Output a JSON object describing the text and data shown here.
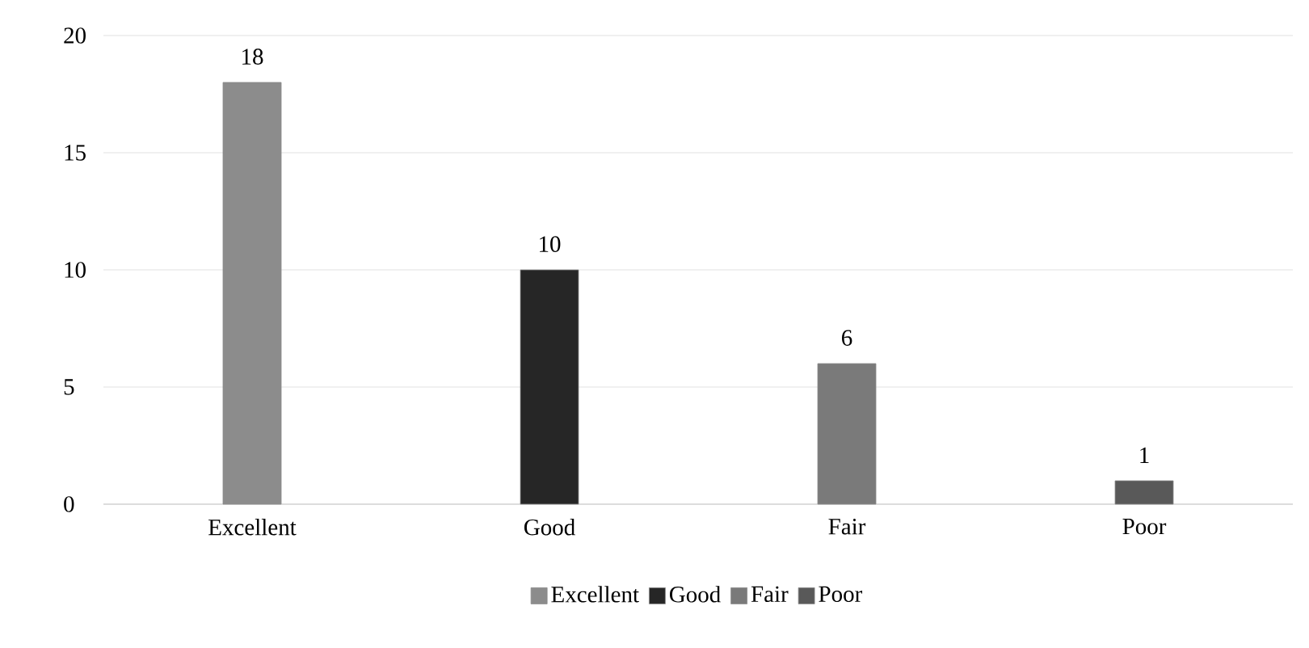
{
  "chart_data": {
    "type": "bar",
    "categories": [
      "Excellent",
      "Good",
      "Fair",
      "Poor"
    ],
    "series": [
      {
        "name": "Excellent",
        "color": "#8c8c8c",
        "values": [
          18,
          null,
          null,
          null
        ]
      },
      {
        "name": "Good",
        "color": "#262626",
        "values": [
          null,
          10,
          null,
          null
        ]
      },
      {
        "name": "Fair",
        "color": "#7a7a7a",
        "values": [
          null,
          null,
          6,
          null
        ]
      },
      {
        "name": "Poor",
        "color": "#595959",
        "values": [
          null,
          null,
          null,
          1
        ]
      }
    ],
    "ylim": [
      0,
      20
    ],
    "yticks": [
      0,
      5,
      10,
      15,
      20
    ],
    "grid": "y",
    "legend": "bottom",
    "data_labels": true
  }
}
